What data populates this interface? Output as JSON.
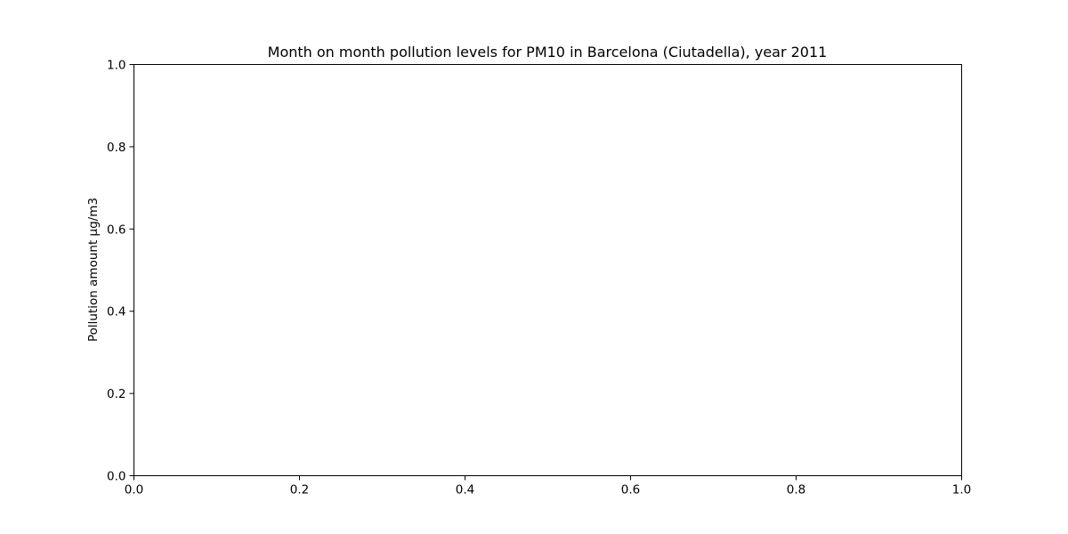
{
  "chart_data": {
    "type": "line",
    "title": "Month on month pollution levels for PM10 in Barcelona (Ciutadella), year 2011",
    "xlabel": "",
    "ylabel": "Pollution amount µg/m3",
    "xlim": [
      0.0,
      1.0
    ],
    "ylim": [
      0.0,
      1.0
    ],
    "x_ticks": [
      "0.0",
      "0.2",
      "0.4",
      "0.6",
      "0.8",
      "1.0"
    ],
    "y_ticks": [
      "0.0",
      "0.2",
      "0.4",
      "0.6",
      "0.8",
      "1.0"
    ],
    "grid": false,
    "series": []
  }
}
